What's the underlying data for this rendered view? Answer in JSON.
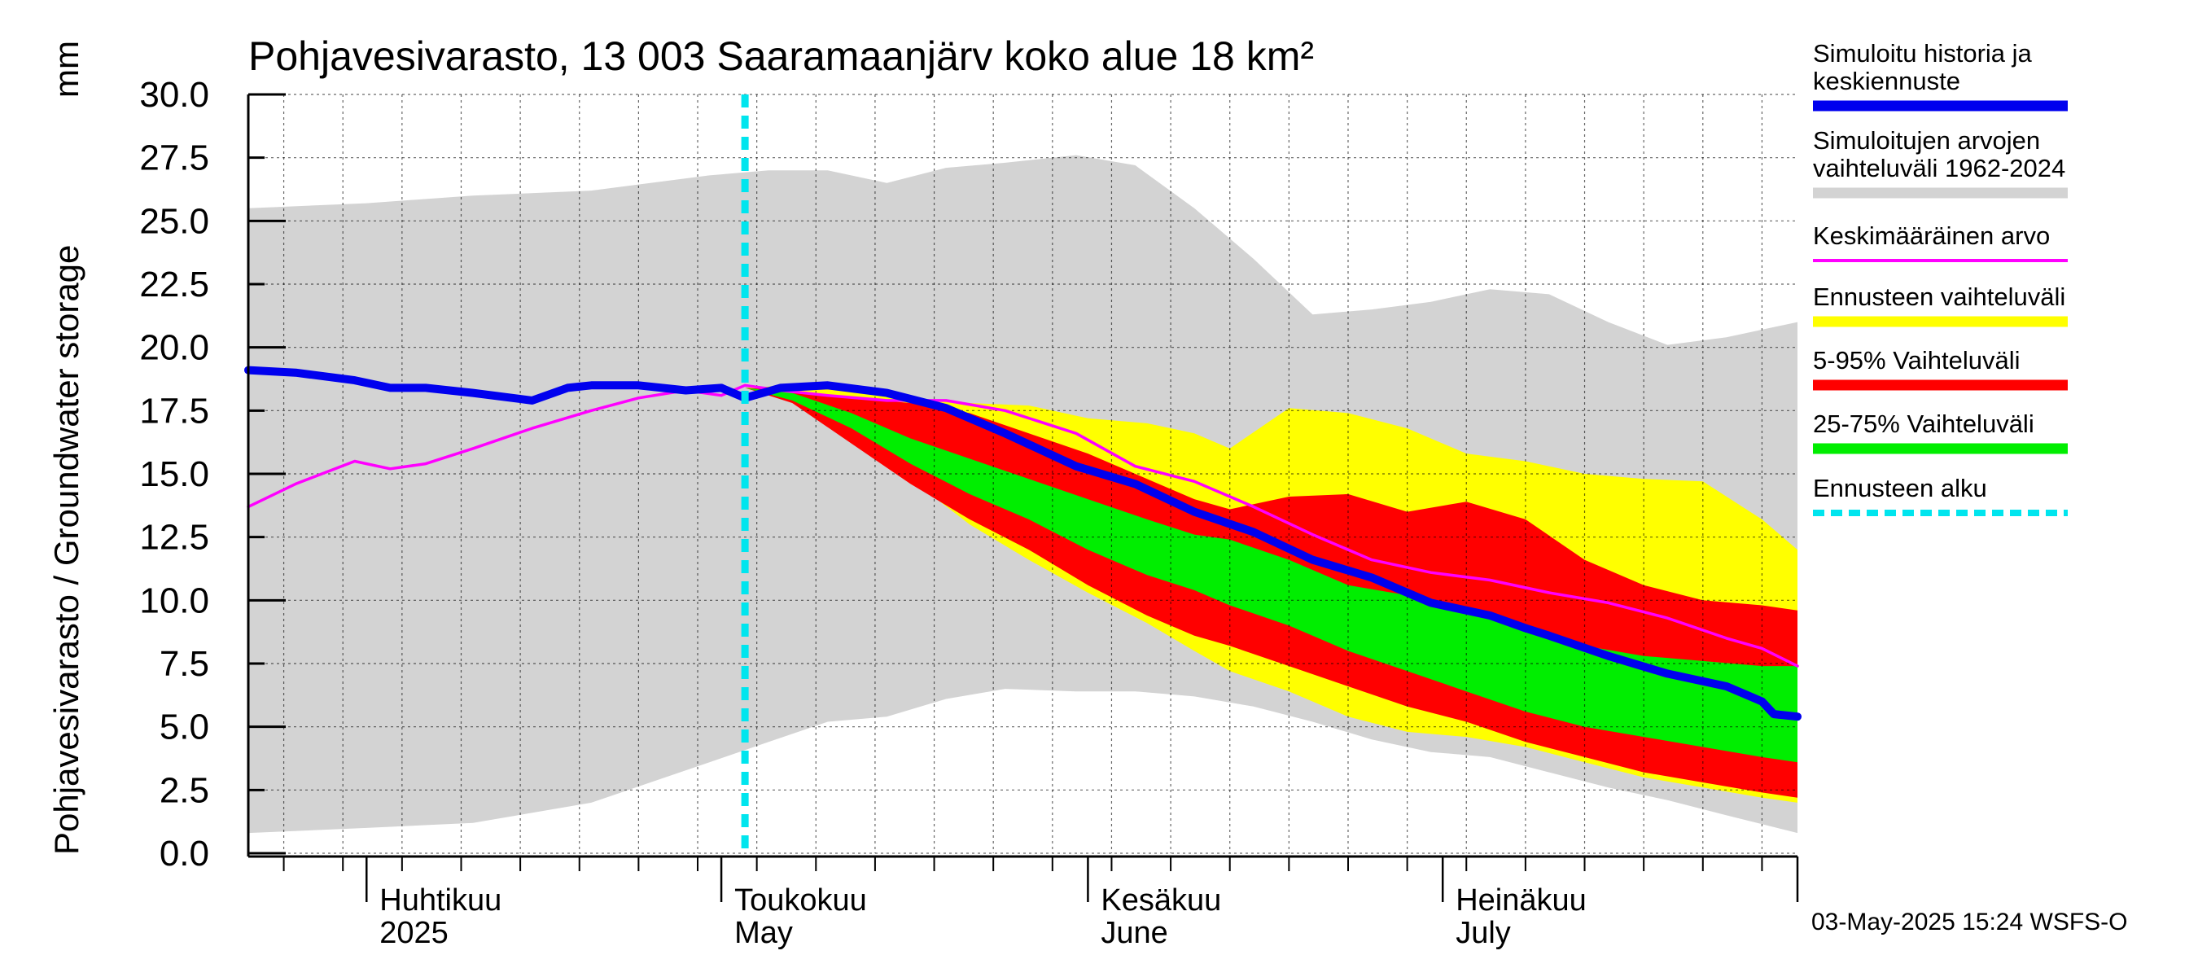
{
  "chart_data": {
    "type": "area",
    "title": "Pohjavesivarasto, 13 003 Saaramaanjärv koko alue 18 km²",
    "ylabel": "Pohjavesivarasto / Groundwater storage",
    "yunit": "mm",
    "ylim": [
      0,
      30
    ],
    "yticks": [
      "0.0",
      "2.5",
      "5.0",
      "7.5",
      "10.0",
      "12.5",
      "15.0",
      "17.5",
      "20.0",
      "22.5",
      "25.0",
      "27.5",
      "30.0"
    ],
    "xlim": [
      "2025-03-22",
      "2025-07-31"
    ],
    "months": [
      {
        "date": "2025-04-01",
        "line1": "Huhtikuu",
        "line2": "2025"
      },
      {
        "date": "2025-05-01",
        "line1": "Toukokuu",
        "line2": "May"
      },
      {
        "date": "2025-06-01",
        "line1": "Kesäkuu",
        "line2": "June"
      },
      {
        "date": "2025-07-01",
        "line1": "Heinäkuu",
        "line2": "July"
      }
    ],
    "forecast_start": "2025-05-03",
    "footer": "03-May-2025 15:24 WSFS-O",
    "legend_position": "right",
    "colors": {
      "history": "#0000ee",
      "range_hist": "#d3d3d3",
      "mean": "#ff00ff",
      "forecast_range": "#ffff00",
      "p5_95": "#ff0000",
      "p25_75": "#00ee00",
      "forecast_start": "#00e5ee"
    },
    "legend": [
      {
        "key": "history",
        "label": "Simuloitu historia ja keskiennuste",
        "lines": [
          "Simuloitu historia ja",
          "keskiennuste"
        ]
      },
      {
        "key": "range_hist",
        "label": "Simuloitujen arvojen vaihteluväli 1962-2024",
        "lines": [
          "Simuloitujen arvojen",
          "vaihteluväli 1962-2024"
        ]
      },
      {
        "key": "mean",
        "label": "Keskimääräinen arvo",
        "lines": [
          "Keskimääräinen arvo"
        ]
      },
      {
        "key": "forecast_range",
        "label": "Ennusteen vaihteluväli",
        "lines": [
          "Ennusteen vaihteluväli"
        ]
      },
      {
        "key": "p5_95",
        "label": "5-95% Vaihteluväli",
        "lines": [
          "5-95% Vaihteluväli"
        ]
      },
      {
        "key": "p25_75",
        "label": "25-75% Vaihteluväli",
        "lines": [
          "25-75% Vaihteluväli"
        ]
      },
      {
        "key": "forecast_start",
        "label": "Ennusteen alku",
        "lines": [
          "Ennusteen alku"
        ]
      }
    ],
    "series": {
      "range_hist": {
        "dates": [
          "2025-03-22",
          "2025-04-01",
          "2025-04-10",
          "2025-04-20",
          "2025-04-30",
          "2025-05-05",
          "2025-05-10",
          "2025-05-15",
          "2025-05-20",
          "2025-05-25",
          "2025-05-31",
          "2025-06-05",
          "2025-06-10",
          "2025-06-15",
          "2025-06-20",
          "2025-06-25",
          "2025-06-30",
          "2025-07-05",
          "2025-07-10",
          "2025-07-15",
          "2025-07-20",
          "2025-07-25",
          "2025-07-31"
        ],
        "upper": [
          25.5,
          25.7,
          26.0,
          26.2,
          26.8,
          27.0,
          27.0,
          26.5,
          27.1,
          27.3,
          27.6,
          27.2,
          25.5,
          23.5,
          21.3,
          21.5,
          21.8,
          22.3,
          22.1,
          21.0,
          20.1,
          20.4,
          21.0
        ],
        "lower": [
          0.8,
          1.0,
          1.2,
          2.0,
          3.6,
          4.4,
          5.2,
          5.4,
          6.1,
          6.5,
          6.4,
          6.4,
          6.2,
          5.8,
          5.2,
          4.5,
          4.0,
          3.8,
          3.2,
          2.6,
          2.1,
          1.5,
          0.8
        ]
      },
      "forecast_range": {
        "dates": [
          "2025-05-03",
          "2025-05-07",
          "2025-05-12",
          "2025-05-17",
          "2025-05-22",
          "2025-05-27",
          "2025-06-01",
          "2025-06-06",
          "2025-06-10",
          "2025-06-13",
          "2025-06-18",
          "2025-06-23",
          "2025-06-28",
          "2025-07-03",
          "2025-07-08",
          "2025-07-13",
          "2025-07-18",
          "2025-07-23",
          "2025-07-28",
          "2025-07-31"
        ],
        "upper": [
          18.4,
          18.5,
          18.3,
          18.0,
          17.8,
          17.7,
          17.2,
          17.0,
          16.6,
          16.0,
          17.6,
          17.4,
          16.8,
          15.8,
          15.5,
          15.0,
          14.8,
          14.7,
          13.2,
          12.0
        ],
        "lower": [
          18.4,
          18.0,
          16.6,
          14.8,
          13.0,
          11.6,
          10.3,
          9.1,
          8.0,
          7.2,
          6.4,
          5.4,
          4.8,
          4.6,
          4.2,
          3.6,
          3.0,
          2.6,
          2.2,
          2.0
        ]
      },
      "p5_95": {
        "dates": [
          "2025-05-03",
          "2025-05-07",
          "2025-05-12",
          "2025-05-17",
          "2025-05-22",
          "2025-05-27",
          "2025-06-01",
          "2025-06-06",
          "2025-06-10",
          "2025-06-13",
          "2025-06-18",
          "2025-06-23",
          "2025-06-28",
          "2025-07-03",
          "2025-07-08",
          "2025-07-13",
          "2025-07-18",
          "2025-07-23",
          "2025-07-28",
          "2025-07-31"
        ],
        "upper": [
          18.4,
          18.3,
          18.0,
          17.8,
          17.4,
          16.6,
          15.8,
          14.8,
          14.0,
          13.6,
          14.1,
          14.2,
          13.5,
          13.9,
          13.2,
          11.6,
          10.6,
          10.0,
          9.8,
          9.6
        ],
        "lower": [
          18.4,
          17.8,
          16.2,
          14.6,
          13.2,
          12.0,
          10.6,
          9.4,
          8.6,
          8.2,
          7.4,
          6.6,
          5.8,
          5.2,
          4.4,
          3.8,
          3.2,
          2.8,
          2.4,
          2.2
        ]
      },
      "p25_75": {
        "dates": [
          "2025-05-03",
          "2025-05-07",
          "2025-05-12",
          "2025-05-17",
          "2025-05-22",
          "2025-05-27",
          "2025-06-01",
          "2025-06-06",
          "2025-06-10",
          "2025-06-13",
          "2025-06-18",
          "2025-06-23",
          "2025-06-28",
          "2025-07-03",
          "2025-07-08",
          "2025-07-13",
          "2025-07-18",
          "2025-07-23",
          "2025-07-28",
          "2025-07-31"
        ],
        "upper": [
          18.4,
          18.2,
          17.4,
          16.4,
          15.6,
          14.8,
          14.0,
          13.2,
          12.6,
          12.4,
          11.6,
          10.6,
          10.2,
          9.6,
          8.8,
          8.2,
          7.8,
          7.6,
          7.4,
          7.4
        ],
        "lower": [
          18.4,
          17.9,
          16.8,
          15.4,
          14.2,
          13.2,
          12.0,
          11.0,
          10.4,
          9.8,
          9.0,
          8.0,
          7.2,
          6.4,
          5.6,
          5.0,
          4.6,
          4.2,
          3.8,
          3.6
        ]
      },
      "mean": {
        "dates": [
          "2025-03-22",
          "2025-03-26",
          "2025-03-31",
          "2025-04-03",
          "2025-04-06",
          "2025-04-10",
          "2025-04-15",
          "2025-04-20",
          "2025-04-24",
          "2025-04-28",
          "2025-05-01",
          "2025-05-03",
          "2025-05-06",
          "2025-05-10",
          "2025-05-15",
          "2025-05-20",
          "2025-05-25",
          "2025-05-31",
          "2025-06-05",
          "2025-06-10",
          "2025-06-15",
          "2025-06-20",
          "2025-06-25",
          "2025-06-30",
          "2025-07-05",
          "2025-07-10",
          "2025-07-15",
          "2025-07-20",
          "2025-07-25",
          "2025-07-28",
          "2025-07-31"
        ],
        "values": [
          13.7,
          14.6,
          15.5,
          15.2,
          15.4,
          16.0,
          16.8,
          17.5,
          18.0,
          18.3,
          18.1,
          18.5,
          18.3,
          18.1,
          17.9,
          17.9,
          17.5,
          16.6,
          15.3,
          14.7,
          13.7,
          12.6,
          11.6,
          11.1,
          10.8,
          10.3,
          9.9,
          9.3,
          8.5,
          8.1,
          7.4
        ]
      },
      "history": {
        "dates": [
          "2025-03-22",
          "2025-03-26",
          "2025-03-31",
          "2025-04-03",
          "2025-04-06",
          "2025-04-10",
          "2025-04-15",
          "2025-04-18",
          "2025-04-20",
          "2025-04-24",
          "2025-04-28",
          "2025-05-01",
          "2025-05-03",
          "2025-05-06",
          "2025-05-10",
          "2025-05-15",
          "2025-05-20",
          "2025-05-25",
          "2025-05-31",
          "2025-06-05",
          "2025-06-10",
          "2025-06-15",
          "2025-06-20",
          "2025-06-25",
          "2025-06-30",
          "2025-07-05",
          "2025-07-08",
          "2025-07-10",
          "2025-07-15",
          "2025-07-20",
          "2025-07-25",
          "2025-07-28",
          "2025-07-29",
          "2025-07-31"
        ],
        "values": [
          19.1,
          19.0,
          18.7,
          18.4,
          18.4,
          18.2,
          17.9,
          18.4,
          18.5,
          18.5,
          18.3,
          18.4,
          18.0,
          18.4,
          18.5,
          18.2,
          17.6,
          16.6,
          15.3,
          14.6,
          13.5,
          12.7,
          11.6,
          10.9,
          9.9,
          9.4,
          8.9,
          8.6,
          7.8,
          7.1,
          6.6,
          6.0,
          5.5,
          5.4
        ]
      }
    }
  }
}
